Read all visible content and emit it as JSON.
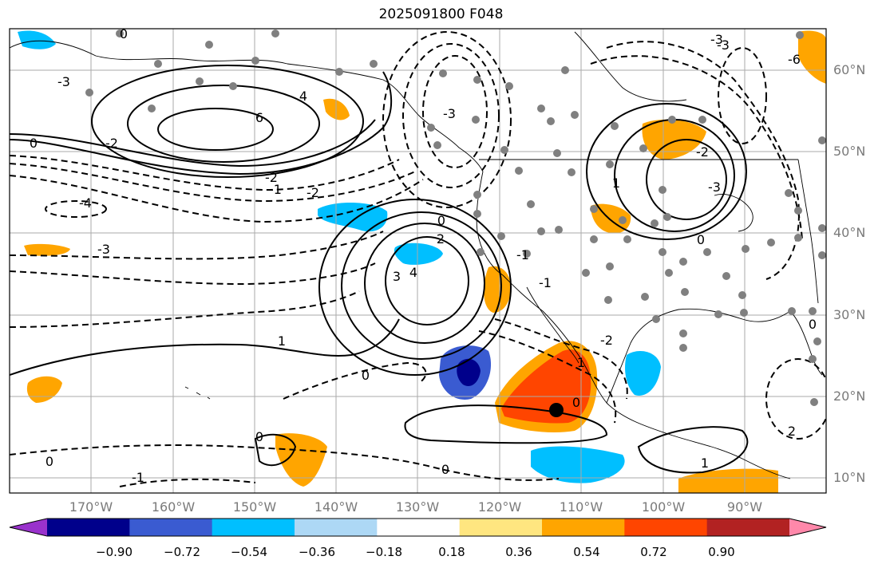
{
  "title": "2025091800 F048",
  "map": {
    "lon_labels": [
      "170°W",
      "160°W",
      "150°W",
      "140°W",
      "130°W",
      "120°W",
      "110°W",
      "100°W",
      "90°W"
    ],
    "lat_labels": [
      "60°N",
      "50°N",
      "40°N",
      "30°N",
      "20°N",
      "10°N"
    ],
    "contour_labels": [
      "-3",
      "-4",
      "-3",
      "-2",
      "-1",
      "-2",
      "0",
      "6",
      "4",
      "-2",
      "0",
      "-3",
      "0",
      "3",
      "4",
      "2",
      "1",
      "0",
      "-1",
      "-2",
      "-3",
      "1",
      "0",
      "0",
      "0",
      "-1",
      "-2",
      "1",
      "-1",
      "-3",
      "0",
      "2",
      "-6",
      "-3",
      "0",
      "1",
      "0"
    ]
  },
  "colorbar": {
    "ticks": [
      "−0.90",
      "−0.72",
      "−0.54",
      "−0.36",
      "−0.18",
      "0.18",
      "0.36",
      "0.54",
      "0.72",
      "0.90"
    ],
    "colors": [
      "#9932cc",
      "#00008b",
      "#3a5bd1",
      "#00bfff",
      "#add8f5",
      "#ffffff",
      "#ffe680",
      "#ffa500",
      "#ff4500",
      "#b22222",
      "#ff88aa"
    ]
  }
}
